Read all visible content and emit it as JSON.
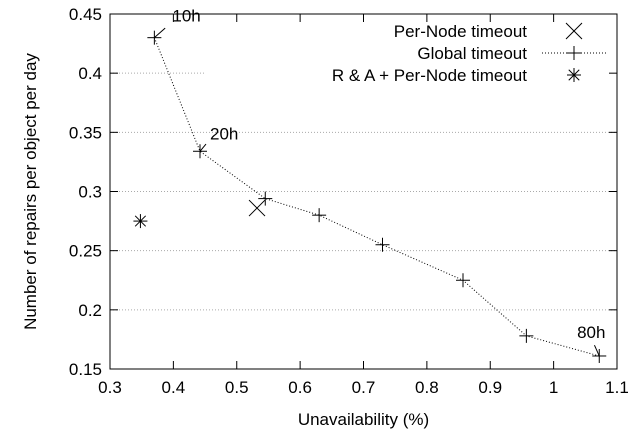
{
  "chart_data": {
    "type": "scatter",
    "xlabel": "Unavailability (%)",
    "ylabel": "Number of repairs per object per day",
    "xlim": [
      0.3,
      1.1
    ],
    "ylim": [
      0.15,
      0.45
    ],
    "xticks": [
      "0.3",
      "0.4",
      "0.5",
      "0.6",
      "0.7",
      "0.8",
      "0.9",
      "1",
      "1.1"
    ],
    "yticks": [
      "0.15",
      "0.2",
      "0.25",
      "0.3",
      "0.35",
      "0.4",
      "0.45"
    ],
    "grid": "horizontal",
    "legend_position": "top-right",
    "series": [
      {
        "name": "Per-Node timeout",
        "marker": "x",
        "line": false,
        "points": [
          {
            "x": 0.532,
            "y": 0.286
          }
        ]
      },
      {
        "name": "Global timeout",
        "marker": "+",
        "line": true,
        "points": [
          {
            "x": 0.37,
            "y": 0.43
          },
          {
            "x": 0.442,
            "y": 0.334
          },
          {
            "x": 0.545,
            "y": 0.294
          },
          {
            "x": 0.63,
            "y": 0.28
          },
          {
            "x": 0.73,
            "y": 0.255
          },
          {
            "x": 0.857,
            "y": 0.225
          },
          {
            "x": 0.957,
            "y": 0.178
          },
          {
            "x": 1.072,
            "y": 0.161
          }
        ]
      },
      {
        "name": "R & A + Per-Node timeout",
        "marker": "asterisk",
        "line": false,
        "points": [
          {
            "x": 0.348,
            "y": 0.275
          }
        ]
      }
    ],
    "annotations": [
      {
        "text": "10h",
        "x": 0.37,
        "y": 0.43
      },
      {
        "text": "20h",
        "x": 0.442,
        "y": 0.334
      },
      {
        "text": "80h",
        "x": 1.072,
        "y": 0.161
      }
    ]
  }
}
